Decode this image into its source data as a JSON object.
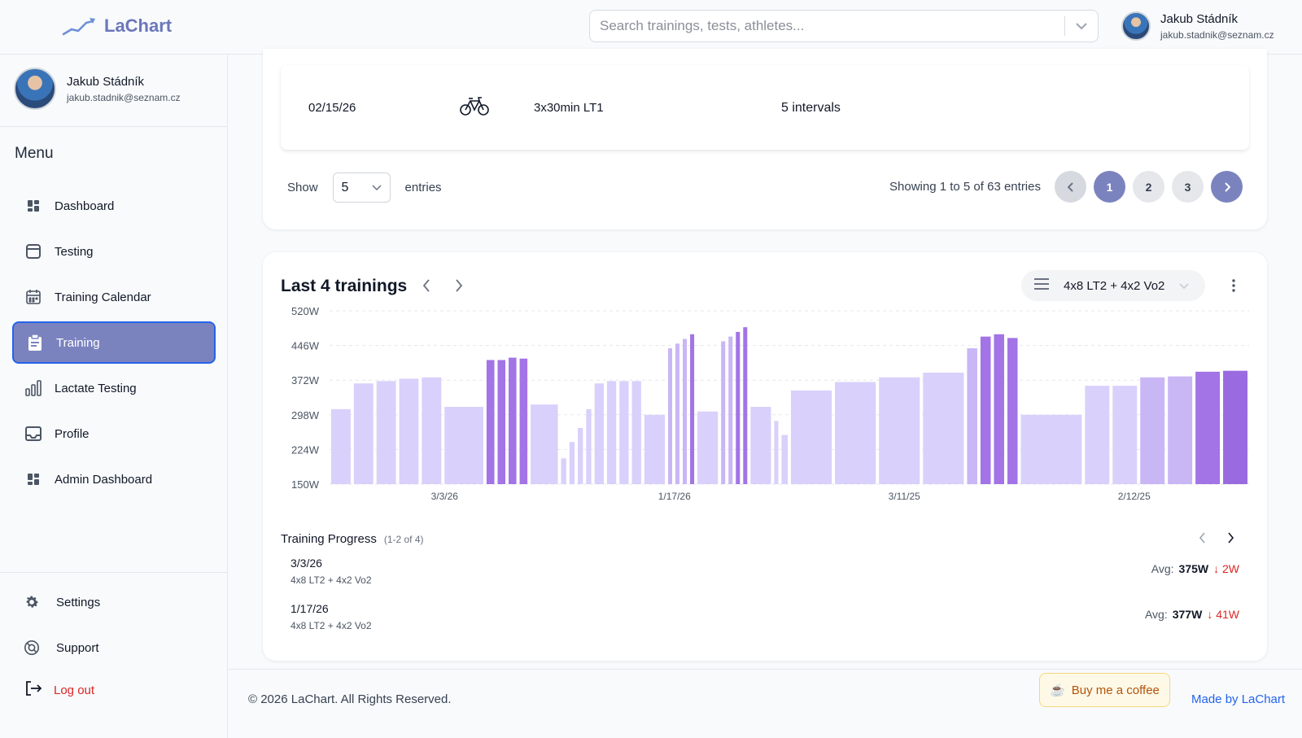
{
  "app": {
    "name": "LaChart"
  },
  "search": {
    "placeholder": "Search trainings, tests, athletes..."
  },
  "user": {
    "name": "Jakub Stádník",
    "email": "jakub.stadnik@seznam.cz"
  },
  "sidebar": {
    "menu_title": "Menu",
    "items": [
      {
        "label": "Dashboard",
        "icon": "dashboard-icon"
      },
      {
        "label": "Testing",
        "icon": "testing-icon"
      },
      {
        "label": "Training Calendar",
        "icon": "calendar-icon"
      },
      {
        "label": "Training",
        "icon": "clipboard-icon",
        "active": true
      },
      {
        "label": "Lactate Testing",
        "icon": "bar-chart-icon"
      },
      {
        "label": "Profile",
        "icon": "inbox-icon"
      },
      {
        "label": "Admin Dashboard",
        "icon": "dashboard-icon"
      }
    ],
    "bottom_items": [
      {
        "label": "Settings",
        "icon": "gear-icon"
      },
      {
        "label": "Support",
        "icon": "support-icon"
      }
    ],
    "logout": "Log out"
  },
  "table": {
    "row": {
      "date": "02/15/26",
      "sport_icon": "bicycle-icon",
      "title": "3x30min LT1",
      "intervals": "5 intervals"
    },
    "show_label": "Show",
    "page_size": "5",
    "entries_label": "entries",
    "showing": "Showing 1 to 5 of 63 entries",
    "pages": [
      "1",
      "2",
      "3"
    ],
    "current_page": "1"
  },
  "trainings": {
    "title": "Last 4 trainings",
    "selected_workout": "4x8 LT2 + 4x2 Vo2",
    "progress_title": "Training Progress",
    "progress_range": "(1-2 of 4)",
    "progress": [
      {
        "date": "3/3/26",
        "workout": "4x8 LT2 + 4x2 Vo2",
        "avg_label": "Avg:",
        "avg": "375W",
        "delta": "↓ 2W"
      },
      {
        "date": "1/17/26",
        "workout": "4x8 LT2 + 4x2 Vo2",
        "avg_label": "Avg:",
        "avg": "377W",
        "delta": "↓ 41W"
      }
    ]
  },
  "chart_data": {
    "type": "bar",
    "ylim": [
      150,
      520
    ],
    "y_ticks": [
      "520W",
      "446W",
      "372W",
      "298W",
      "224W",
      "150W"
    ],
    "x_ticks": [
      "3/3/26",
      "1/17/26",
      "3/11/25",
      "2/12/25"
    ],
    "colors": {
      "light": "#d9d0fb",
      "mid": "#c9b6f5",
      "dark": "#a274e6",
      "deep": "#9a6ae0"
    },
    "groups": [
      {
        "date": "3/3/26",
        "bars": [
          {
            "w": 1,
            "v": 310,
            "c": "light"
          },
          {
            "w": 1,
            "v": 365,
            "c": "light"
          },
          {
            "w": 1,
            "v": 370,
            "c": "light"
          },
          {
            "w": 1,
            "v": 375,
            "c": "light"
          },
          {
            "w": 1,
            "v": 378,
            "c": "light"
          },
          {
            "w": 2,
            "v": 315,
            "c": "light"
          },
          {
            "w": 0.4,
            "v": 415,
            "c": "dark"
          },
          {
            "w": 0.4,
            "v": 415,
            "c": "dark"
          },
          {
            "w": 0.4,
            "v": 420,
            "c": "dark"
          },
          {
            "w": 0.4,
            "v": 418,
            "c": "dark"
          },
          {
            "w": 1.4,
            "v": 320,
            "c": "light"
          }
        ]
      },
      {
        "date": "1/17/26",
        "bars": [
          {
            "w": 0.25,
            "v": 205,
            "c": "light"
          },
          {
            "w": 0.25,
            "v": 240,
            "c": "light"
          },
          {
            "w": 0.25,
            "v": 270,
            "c": "light"
          },
          {
            "w": 0.25,
            "v": 310,
            "c": "light"
          },
          {
            "w": 0.45,
            "v": 365,
            "c": "light"
          },
          {
            "w": 0.45,
            "v": 370,
            "c": "light"
          },
          {
            "w": 0.45,
            "v": 370,
            "c": "light"
          },
          {
            "w": 0.45,
            "v": 370,
            "c": "light"
          },
          {
            "w": 1,
            "v": 298,
            "c": "light"
          },
          {
            "w": 0.2,
            "v": 440,
            "c": "mid"
          },
          {
            "w": 0.2,
            "v": 450,
            "c": "mid"
          },
          {
            "w": 0.2,
            "v": 460,
            "c": "mid"
          },
          {
            "w": 0.2,
            "v": 470,
            "c": "dark"
          },
          {
            "w": 1,
            "v": 305,
            "c": "light"
          },
          {
            "w": 0.2,
            "v": 455,
            "c": "mid"
          },
          {
            "w": 0.2,
            "v": 465,
            "c": "mid"
          },
          {
            "w": 0.2,
            "v": 475,
            "c": "dark"
          },
          {
            "w": 0.2,
            "v": 485,
            "c": "dark"
          },
          {
            "w": 1,
            "v": 315,
            "c": "light"
          },
          {
            "w": 0.2,
            "v": 285,
            "c": "light"
          },
          {
            "w": 0.3,
            "v": 255,
            "c": "light"
          }
        ]
      },
      {
        "date": "3/11/25",
        "bars": [
          {
            "w": 2,
            "v": 350,
            "c": "light"
          },
          {
            "w": 2,
            "v": 368,
            "c": "light"
          },
          {
            "w": 2,
            "v": 378,
            "c": "light"
          },
          {
            "w": 2,
            "v": 388,
            "c": "light"
          },
          {
            "w": 0.5,
            "v": 440,
            "c": "mid"
          },
          {
            "w": 0.5,
            "v": 465,
            "c": "dark"
          },
          {
            "w": 0.5,
            "v": 470,
            "c": "dark"
          },
          {
            "w": 0.5,
            "v": 462,
            "c": "dark"
          }
        ]
      },
      {
        "date": "2/12/25",
        "bars": [
          {
            "w": 3,
            "v": 298,
            "c": "light"
          },
          {
            "w": 1.2,
            "v": 360,
            "c": "light"
          },
          {
            "w": 1.2,
            "v": 360,
            "c": "light"
          },
          {
            "w": 1.2,
            "v": 378,
            "c": "mid"
          },
          {
            "w": 1.2,
            "v": 380,
            "c": "mid"
          },
          {
            "w": 1.2,
            "v": 390,
            "c": "dark"
          },
          {
            "w": 1.2,
            "v": 392,
            "c": "deep"
          }
        ]
      }
    ]
  }
}
